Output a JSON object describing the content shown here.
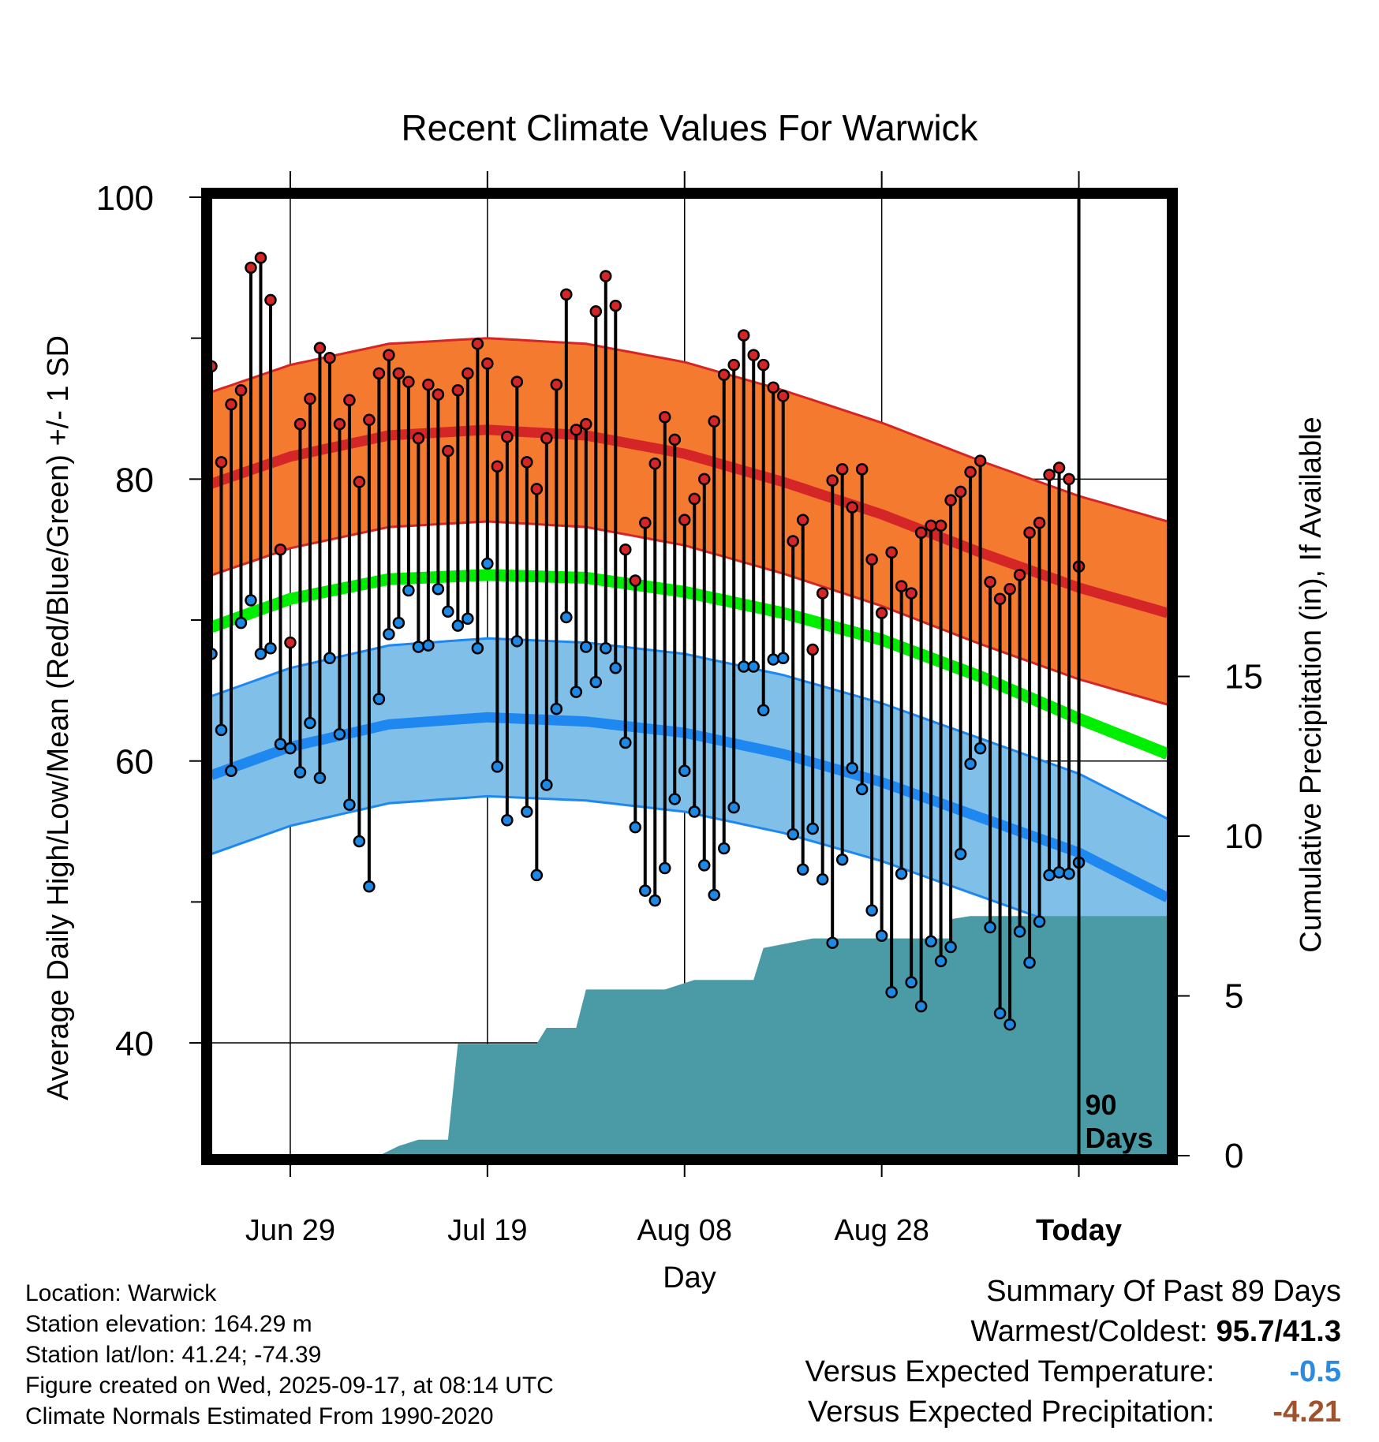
{
  "colors": {
    "high_band": "#f47a30",
    "high_line": "#d42626",
    "low_band": "#7fbfe8",
    "low_line": "#1e88f0",
    "mean_line": "#00ee00",
    "precip": "#4a9ba5",
    "high_point": "#d42626",
    "low_point": "#1e88e5",
    "temp_anomaly": "#2a8be0",
    "precip_anomaly": "#a0522d"
  },
  "chart_data": {
    "type": "line",
    "title": "Recent Climate Values For Warwick",
    "xlabel": "Day",
    "ylabel": "Average Daily High/Low/Mean (Red/Blue/Green) +/- 1 SD",
    "y2label": "Cumulative Precipitation (in), If Available",
    "x_domain_days": [
      -88,
      9
    ],
    "ylim": [
      32,
      100
    ],
    "y2lim": [
      0,
      30
    ],
    "y_ticks": [
      40,
      60,
      80,
      100
    ],
    "y2_ticks": [
      0,
      5,
      10,
      15
    ],
    "x_ticks": [
      {
        "day": -80,
        "label": "Jun 29"
      },
      {
        "day": -60,
        "label": "Jul 19"
      },
      {
        "day": -40,
        "label": "Aug 08"
      },
      {
        "day": -20,
        "label": "Aug 28"
      },
      {
        "day": 0,
        "label": "Today"
      }
    ],
    "today_marker": {
      "day": 0,
      "label_line1": "90",
      "label_line2": "Days"
    },
    "normals": {
      "day": [
        -90,
        -80,
        -70,
        -60,
        -50,
        -40,
        -30,
        -20,
        -10,
        0,
        9
      ],
      "high_mean": [
        79.2,
        81.6,
        83.1,
        83.5,
        83.1,
        81.8,
        79.8,
        77.5,
        74.8,
        72.3,
        70.5
      ],
      "high_sd": 6.5,
      "low_mean": [
        58.5,
        61.0,
        62.6,
        63.1,
        62.8,
        62.0,
        60.5,
        58.5,
        56.0,
        53.5,
        50.3
      ],
      "low_sd": 5.6,
      "mean_mean": [
        69.0,
        71.5,
        72.9,
        73.2,
        73.0,
        72.0,
        70.5,
        68.6,
        66.0,
        63.0,
        60.5
      ]
    },
    "series": [
      {
        "name": "High",
        "values": [
          88.0,
          81.2,
          85.3,
          86.3,
          95.0,
          95.7,
          92.7,
          75.0,
          68.4,
          83.9,
          85.7,
          89.3,
          88.6,
          83.9,
          85.6,
          79.8,
          84.2,
          87.5,
          88.8,
          87.5,
          86.9,
          82.9,
          86.7,
          86.0,
          82.0,
          86.3,
          87.5,
          89.6,
          88.2,
          80.9,
          83.0,
          86.9,
          81.2,
          79.3,
          82.9,
          86.7,
          93.1,
          83.5,
          83.9,
          91.9,
          94.4,
          92.3,
          75.0,
          72.8,
          76.9,
          81.1,
          84.4,
          82.8,
          77.1,
          78.6,
          80.0,
          84.1,
          87.4,
          88.1,
          90.2,
          88.8,
          88.1,
          86.5,
          85.9,
          75.6,
          77.1,
          67.9,
          71.9,
          79.9,
          80.7,
          78.0,
          80.7,
          74.3,
          70.5,
          74.8,
          72.4,
          71.9,
          76.2,
          76.7,
          76.7,
          78.5,
          79.1,
          80.5,
          81.3,
          72.7,
          71.5,
          72.2,
          73.2,
          76.2,
          76.9,
          80.3,
          80.8,
          80.0,
          73.8
        ]
      },
      {
        "name": "Low",
        "values": [
          67.6,
          62.2,
          59.3,
          69.8,
          71.4,
          67.6,
          68.0,
          61.2,
          60.9,
          59.2,
          62.7,
          58.8,
          67.3,
          61.9,
          56.9,
          54.3,
          51.1,
          64.4,
          69.0,
          69.8,
          72.1,
          68.1,
          68.2,
          72.2,
          70.6,
          69.6,
          70.1,
          68.0,
          74.0,
          59.6,
          55.8,
          68.5,
          56.4,
          51.9,
          58.3,
          63.7,
          70.2,
          64.9,
          68.1,
          65.6,
          68.0,
          66.6,
          61.3,
          55.3,
          50.8,
          50.1,
          52.4,
          57.3,
          59.3,
          56.4,
          52.6,
          50.5,
          53.8,
          56.7,
          66.7,
          66.7,
          63.6,
          67.2,
          67.3,
          54.8,
          52.3,
          55.2,
          51.6,
          47.1,
          53.0,
          59.5,
          58.0,
          49.4,
          47.6,
          43.6,
          52.0,
          44.3,
          42.6,
          47.2,
          45.8,
          46.8,
          53.4,
          59.8,
          60.9,
          48.2,
          42.1,
          41.3,
          47.9,
          45.7,
          48.6,
          51.9,
          52.1,
          52.0,
          52.8
        ]
      },
      {
        "name": "Cumulative Precipitation",
        "points": [
          [
            -88,
            0
          ],
          [
            -71,
            0
          ],
          [
            -69,
            0.3
          ],
          [
            -67,
            0.5
          ],
          [
            -64,
            0.5
          ],
          [
            -63,
            3.5
          ],
          [
            -55,
            3.5
          ],
          [
            -54,
            4.0
          ],
          [
            -51,
            4.0
          ],
          [
            -50,
            5.2
          ],
          [
            -42,
            5.2
          ],
          [
            -39,
            5.5
          ],
          [
            -33,
            5.5
          ],
          [
            -32,
            6.5
          ],
          [
            -27,
            6.8
          ],
          [
            -13,
            6.8
          ],
          [
            -13,
            7.4
          ],
          [
            -11,
            7.5
          ],
          [
            9,
            7.5
          ]
        ]
      }
    ]
  },
  "footer": {
    "location": "Location: Warwick",
    "elevation": "Station elevation: 164.29 m",
    "latlon": "Station lat/lon: 41.24; -74.39",
    "created": "Figure created on Wed, 2025-09-17, at 08:14 UTC",
    "normals": "Climate Normals Estimated From 1990-2020"
  },
  "summary": {
    "heading": "Summary Of Past 89 Days",
    "warm_cold_label": "Warmest/Coldest:",
    "warm_cold_value": "95.7/41.3",
    "temp_label": "Versus Expected Temperature:",
    "temp_value": "-0.5",
    "precip_label": "Versus Expected Precipitation:",
    "precip_value": "-4.21"
  }
}
